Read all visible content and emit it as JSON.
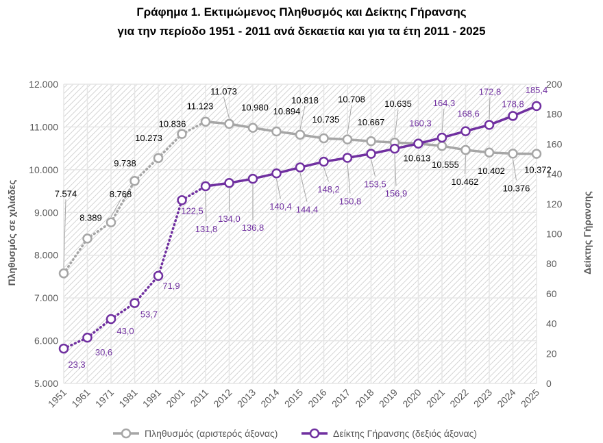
{
  "chart_data": {
    "type": "line",
    "title_line1": "Γράφημα 1. Εκτιμώμενος Πληθυσμός και Δείκτης Γήρανσης",
    "title_line2": "για την περίοδο 1951 - 2011 ανά δεκαετία και για τα έτη 2011 - 2025",
    "categories": [
      "1951",
      "1961",
      "1971",
      "1981",
      "1991",
      "2001",
      "2011",
      "2012",
      "2013",
      "2014",
      "2015",
      "2016",
      "2017",
      "2018",
      "2019",
      "2020",
      "2021",
      "2022",
      "2023",
      "2024",
      "2025"
    ],
    "ylabel_left": "Πληθυσμός σε χιλιάδες",
    "ylabel_right": "Δείκτης Γήρανσης",
    "ylim_left": [
      5000,
      12000
    ],
    "ylim_right": [
      0,
      200
    ],
    "yticks_left": [
      "5.000",
      "6.000",
      "7.000",
      "8.000",
      "9.000",
      "10.000",
      "11.000",
      "12.000"
    ],
    "yticks_right": [
      "0",
      "20",
      "40",
      "60",
      "80",
      "100",
      "120",
      "140",
      "160",
      "180",
      "200"
    ],
    "grid": true,
    "legend_position": "bottom",
    "series": [
      {
        "name": "Πληθυσμός (αριστερός άξονας)",
        "axis": "left",
        "color": "#a6a6a6",
        "values": [
          7574,
          8389,
          8768,
          9738,
          10273,
          10836,
          11123,
          11073,
          10980,
          10894,
          10818,
          10735,
          10708,
          10667,
          10635,
          10613,
          10555,
          10462,
          10402,
          10376,
          10372
        ],
        "labels": [
          "7.574",
          "8.389",
          "8.768",
          "9.738",
          "10.273",
          "10.836",
          "11.123",
          "11.073",
          "10.980",
          "10.894",
          "10.818",
          "10.735",
          "10.708",
          "10.667",
          "10.635",
          "10.613",
          "10.555",
          "10.462",
          "10.402",
          "10.376",
          "10.372"
        ]
      },
      {
        "name": "Δείκτης Γήρανσης (δεξιός άξονας)",
        "axis": "right",
        "color": "#7030a0",
        "values": [
          23.3,
          30.6,
          43.0,
          53.7,
          71.9,
          122.5,
          131.8,
          134.0,
          136.8,
          140.4,
          144.4,
          148.2,
          150.8,
          153.5,
          156.9,
          160.3,
          164.3,
          168.6,
          172.8,
          178.8,
          185.4
        ],
        "labels": [
          "23,3",
          "30,6",
          "43,0",
          "53,7",
          "71,9",
          "122,5",
          "131,8",
          "134,0",
          "136,8",
          "140,4",
          "144,4",
          "148,2",
          "150,8",
          "153,5",
          "156,9",
          "160,3",
          "164,3",
          "168,6",
          "172,8",
          "178,8",
          "185,4"
        ]
      }
    ]
  }
}
